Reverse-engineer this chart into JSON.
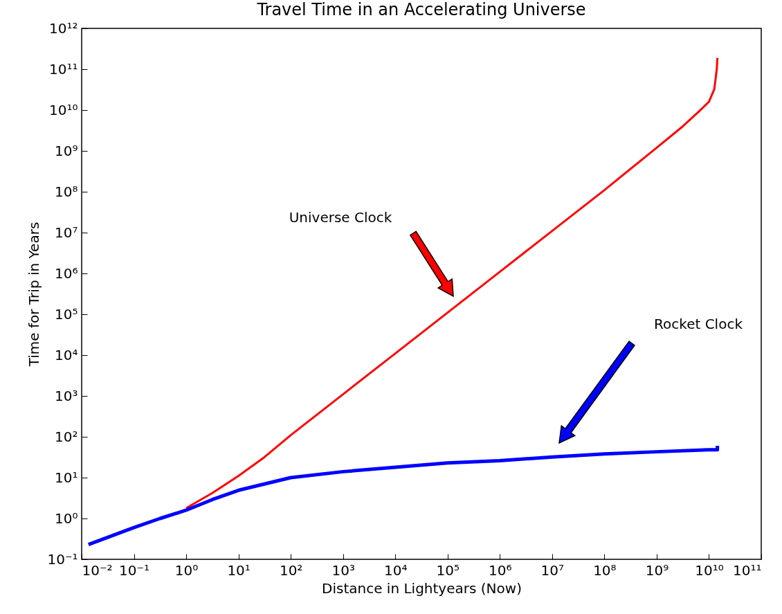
{
  "chart_data": {
    "type": "line",
    "title": "Travel Time in an Accelerating Universe",
    "xlabel": "Distance in Lightyears (Now)",
    "ylabel": "Time for Trip in Years",
    "log": "xy",
    "grid": false,
    "xlim": [
      0.01,
      100000000000.0
    ],
    "ylim": [
      0.1,
      1000000000000.0
    ],
    "xticks": [
      {
        "value": 0.01,
        "label": "10⁻²"
      },
      {
        "value": 0.1,
        "label": "10⁻¹"
      },
      {
        "value": 1,
        "label": "10⁰"
      },
      {
        "value": 10,
        "label": "10¹"
      },
      {
        "value": 100,
        "label": "10²"
      },
      {
        "value": 1000,
        "label": "10³"
      },
      {
        "value": 10000.0,
        "label": "10⁴"
      },
      {
        "value": 100000.0,
        "label": "10⁵"
      },
      {
        "value": 1000000.0,
        "label": "10⁶"
      },
      {
        "value": 10000000.0,
        "label": "10⁷"
      },
      {
        "value": 100000000.0,
        "label": "10⁸"
      },
      {
        "value": 1000000000.0,
        "label": "10⁹"
      },
      {
        "value": 10000000000.0,
        "label": "10¹⁰"
      },
      {
        "value": 100000000000.0,
        "label": "10¹¹"
      }
    ],
    "yticks": [
      {
        "value": 0.1,
        "label": "10⁻¹"
      },
      {
        "value": 1,
        "label": "10⁰"
      },
      {
        "value": 10,
        "label": "10¹"
      },
      {
        "value": 100,
        "label": "10²"
      },
      {
        "value": 1000,
        "label": "10³"
      },
      {
        "value": 10000.0,
        "label": "10⁴"
      },
      {
        "value": 100000.0,
        "label": "10⁵"
      },
      {
        "value": 1000000.0,
        "label": "10⁶"
      },
      {
        "value": 10000000.0,
        "label": "10⁷"
      },
      {
        "value": 100000000.0,
        "label": "10⁸"
      },
      {
        "value": 1000000000.0,
        "label": "10⁹"
      },
      {
        "value": 10000000000.0,
        "label": "10¹⁰"
      },
      {
        "value": 100000000000.0,
        "label": "10¹¹"
      },
      {
        "value": 1000000000000.0,
        "label": "10¹²"
      }
    ],
    "series": [
      {
        "color": "#ff0000",
        "x": [
          1,
          3.16,
          10,
          31.6,
          100,
          1000,
          10000.0,
          100000.0,
          1000000.0,
          10000000.0,
          100000000.0,
          1000000000.0,
          3160000000.0,
          6300000000.0,
          10000000000.0,
          12600000000.0,
          13500000000.0,
          14100000000.0,
          14500000000.0
        ],
        "values": [
          1.8,
          4.2,
          11,
          32,
          110,
          1100,
          11000.0,
          110000.0,
          1100000.0,
          11000000.0,
          110000000.0,
          1200000000.0,
          4000000000.0,
          9000000000.0,
          16000000000.0,
          32000000000.0,
          63000000000.0,
          100000000000.0,
          190000000000.0
        ]
      },
      {
        "color": "#0000ff",
        "x": [
          0.0135,
          0.1,
          0.316,
          1,
          3.16,
          10,
          100,
          1000,
          10000.0,
          100000.0,
          1000000.0,
          10000000.0,
          100000000.0,
          1000000000.0,
          10000000000.0,
          14500000000.0,
          14500000000.0
        ],
        "values": [
          0.23,
          0.6,
          1.0,
          1.6,
          2.9,
          4.9,
          10,
          14,
          18,
          23,
          26,
          32,
          38,
          43,
          48,
          48,
          60
        ]
      }
    ],
    "annotations": [
      "Universe Clock",
      "Rocket Clock"
    ]
  }
}
